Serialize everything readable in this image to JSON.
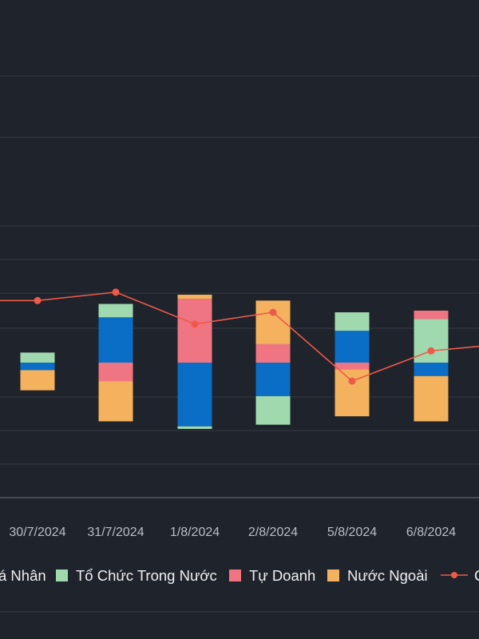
{
  "chart_data": {
    "type": "bar",
    "stacked": true,
    "categories": [
      "30/7/2024",
      "31/7/2024",
      "1/8/2024",
      "2/8/2024",
      "5/8/2024",
      "6/8/2024"
    ],
    "visible_category_fragment_left": "",
    "series": [
      {
        "name": "Cá Nhân",
        "legend_visible_text": "á Nhân",
        "color": "#0a6ec6",
        "values": [
          -4.5,
          27,
          -38,
          -20,
          19,
          -8
        ]
      },
      {
        "name": "Tổ Chức Trong Nước",
        "color": "#a1d9ae",
        "values": [
          6,
          8,
          -1.5,
          -17,
          11,
          26
        ]
      },
      {
        "name": "Tự Doanh",
        "color": "#f07582",
        "values": [
          0,
          -11,
          38,
          11,
          -4,
          5
        ]
      },
      {
        "name": "Nước Ngoài",
        "color": "#f4b25e",
        "values": [
          -12,
          -24,
          2.5,
          26,
          -28,
          -27
        ]
      }
    ],
    "line_series": {
      "name": "C",
      "legend_visible_text": "C",
      "color": "#ee5a4a",
      "values": [
        37,
        42,
        23,
        30,
        -11,
        7
      ],
      "edge_values": {
        "left": 37,
        "right": 10
      }
    },
    "ylim": [
      -80,
      180
    ],
    "grid": true,
    "legend_position": "bottom",
    "xlabel": "",
    "ylabel": ""
  }
}
